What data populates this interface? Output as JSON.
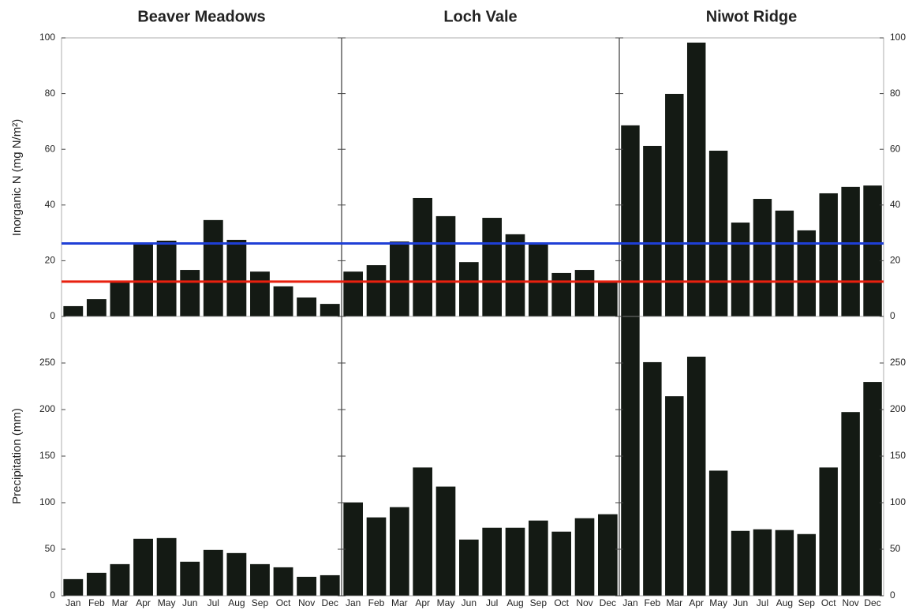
{
  "chart_data": {
    "type": "bar",
    "color": "#141a14",
    "categories": [
      "Jan",
      "Feb",
      "Mar",
      "Apr",
      "May",
      "Jun",
      "Jul",
      "Aug",
      "Sep",
      "Oct",
      "Nov",
      "Dec"
    ],
    "rows": [
      {
        "ylabel": "Inorganic N (mg N/m²)",
        "ylim": [
          0,
          100
        ],
        "yticks": [
          0,
          20,
          40,
          60,
          80,
          100
        ],
        "hlines": [
          {
            "value": 26.2,
            "color": "#1f3fd6"
          },
          {
            "value": 12.5,
            "color": "#e8200f"
          }
        ]
      },
      {
        "ylabel": "Precipitation (mm)",
        "ylim": [
          0,
          300
        ],
        "yticks": [
          0,
          50,
          100,
          150,
          200,
          250
        ]
      }
    ],
    "sites": [
      {
        "title": "Beaver Meadows",
        "values": [
          [
            3.7,
            6.2,
            12.7,
            26,
            27.2,
            16.7,
            34.6,
            27.5,
            16.1,
            10.8,
            6.8,
            4.5
          ],
          [
            17.9,
            24.7,
            34,
            61.2,
            62,
            36.6,
            49.3,
            45.9,
            34,
            30.6,
            20.4,
            22.1
          ]
        ]
      },
      {
        "title": "Loch Vale",
        "values": [
          [
            16.1,
            18.4,
            26.9,
            42.5,
            36,
            19.5,
            35.4,
            29.5,
            26.3,
            15.6,
            16.7,
            12.5
          ],
          [
            100.3,
            84.2,
            95.2,
            137.8,
            117.3,
            60.4,
            73.1,
            73.1,
            80.8,
            68.9,
            83.3,
            87.6
          ]
        ]
      },
      {
        "title": "Niwot Ridge",
        "values": [
          [
            68.6,
            61.2,
            79.9,
            98.3,
            59.5,
            33.7,
            42.2,
            38,
            30.9,
            44.2,
            46.5,
            47
          ],
          [
            300,
            250.9,
            214.3,
            256.8,
            134.4,
            69.7,
            71.4,
            70.6,
            66.3,
            137.8,
            197.3,
            229.6
          ]
        ]
      }
    ]
  }
}
